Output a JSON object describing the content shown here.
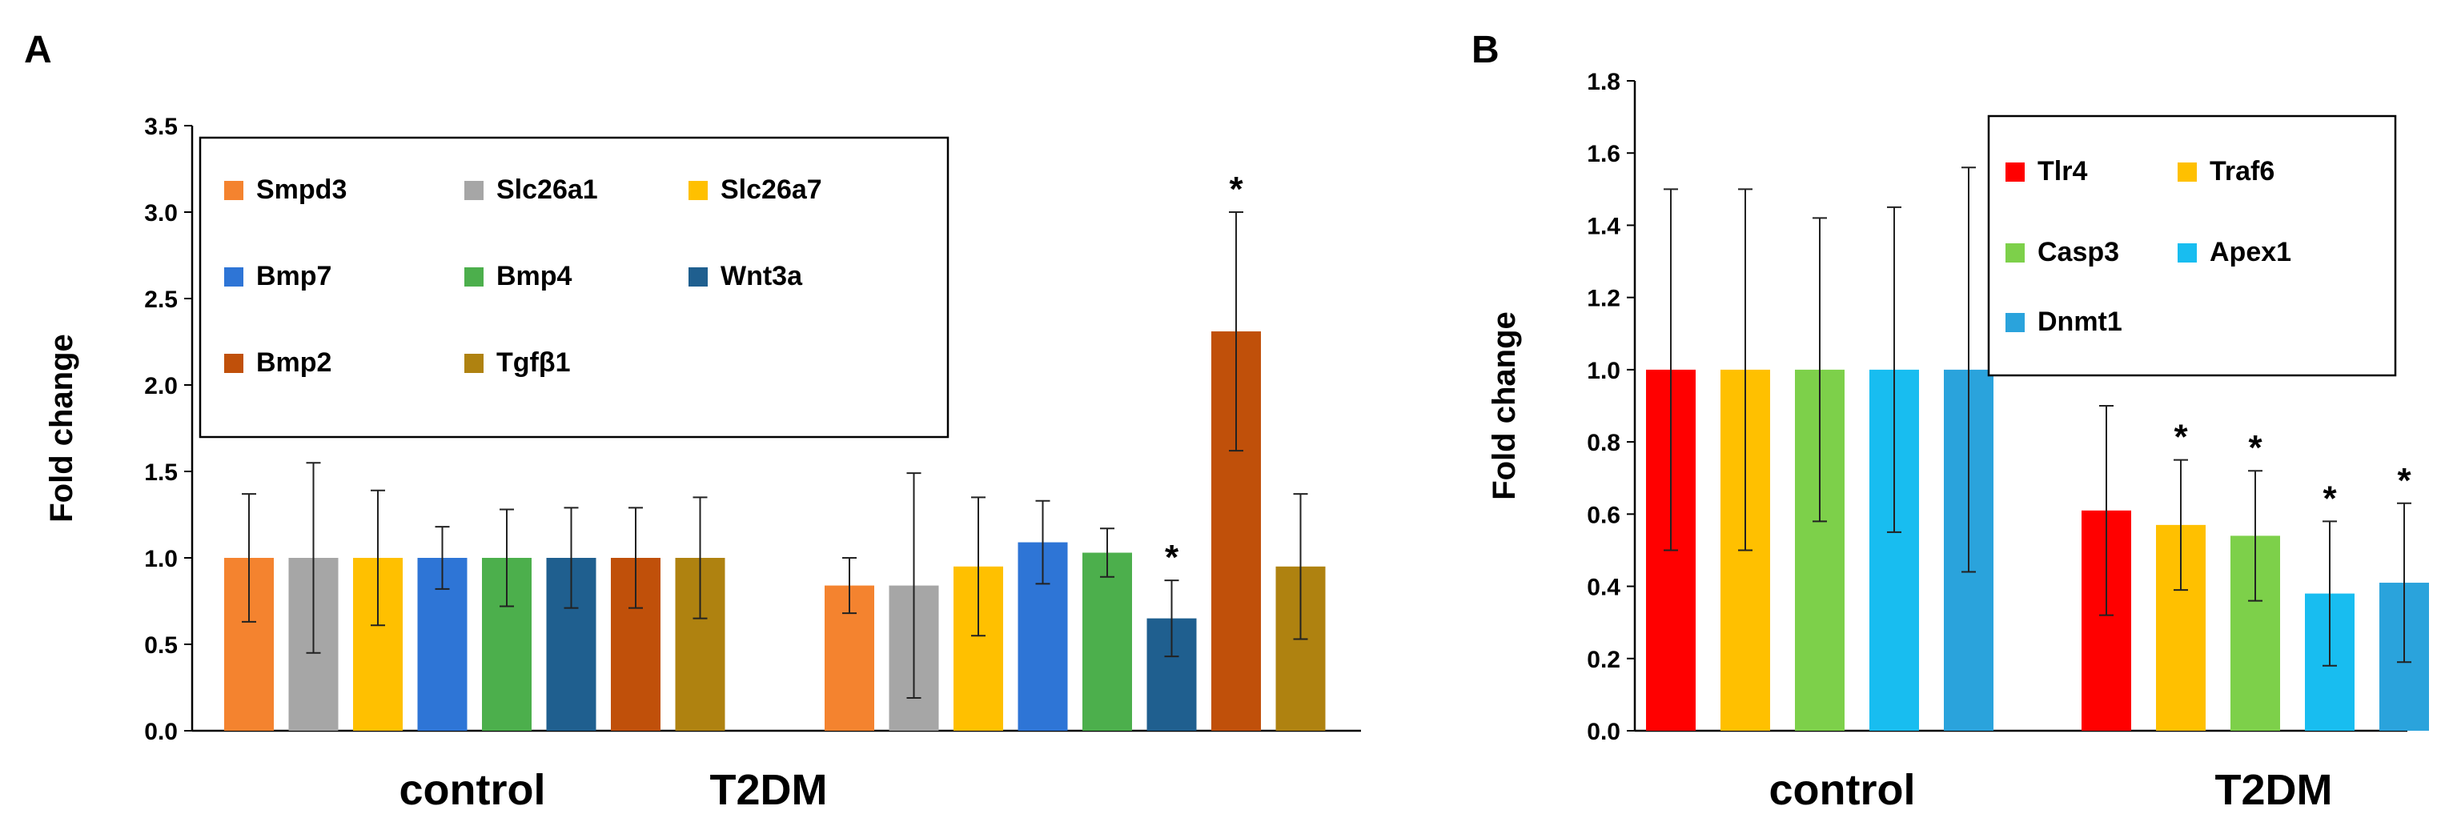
{
  "panels": [
    {
      "label": "A",
      "chart_data": {
        "type": "bar",
        "ylabel": "Fold change",
        "ylim": [
          0,
          3.5
        ],
        "yticks": [
          "0.0",
          "0.5",
          "1.0",
          "1.5",
          "2.0",
          "2.5",
          "3.0",
          "3.5"
        ],
        "categories": [
          "control",
          "T2DM"
        ],
        "series": [
          {
            "name": "Smpd3",
            "color": "#F4832F",
            "values": [
              1.0,
              0.84
            ],
            "errors": [
              0.37,
              0.16
            ],
            "sig": [
              false,
              false
            ]
          },
          {
            "name": "Slc26a1",
            "color": "#A6A6A6",
            "values": [
              1.0,
              0.84
            ],
            "errors": [
              0.55,
              0.65
            ],
            "sig": [
              false,
              false
            ]
          },
          {
            "name": "Slc26a7",
            "color": "#FFC000",
            "values": [
              1.0,
              0.95
            ],
            "errors": [
              0.39,
              0.4
            ],
            "sig": [
              false,
              false
            ]
          },
          {
            "name": "Bmp7",
            "color": "#2E75D6",
            "values": [
              1.0,
              1.09
            ],
            "errors": [
              0.18,
              0.24
            ],
            "sig": [
              false,
              false
            ]
          },
          {
            "name": "Bmp4",
            "color": "#4CAF4C",
            "values": [
              1.0,
              1.03
            ],
            "errors": [
              0.28,
              0.14
            ],
            "sig": [
              false,
              false
            ]
          },
          {
            "name": "Wnt3a",
            "color": "#1F5F8F",
            "values": [
              1.0,
              0.65
            ],
            "errors": [
              0.29,
              0.22
            ],
            "sig": [
              false,
              true
            ]
          },
          {
            "name": "Bmp2",
            "color": "#C0500A",
            "values": [
              1.0,
              2.31
            ],
            "errors": [
              0.29,
              0.69
            ],
            "sig": [
              false,
              true
            ]
          },
          {
            "name": "Tgfβ1",
            "color": "#AF8210",
            "values": [
              1.0,
              0.95
            ],
            "errors": [
              0.35,
              0.42
            ],
            "sig": [
              false,
              false
            ]
          }
        ],
        "significance_marker": "*",
        "legend": "top-left"
      }
    },
    {
      "label": "B",
      "chart_data": {
        "type": "bar",
        "ylabel": "Fold change",
        "ylim": [
          0,
          1.8
        ],
        "yticks": [
          "0.0",
          "0.2",
          "0.4",
          "0.6",
          "0.8",
          "1.0",
          "1.2",
          "1.4",
          "1.6",
          "1.8"
        ],
        "categories": [
          "control",
          "T2DM"
        ],
        "series": [
          {
            "name": "Tlr4",
            "color": "#FF0000",
            "values": [
              1.0,
              0.61
            ],
            "errors": [
              0.5,
              0.29
            ],
            "sig": [
              false,
              false
            ]
          },
          {
            "name": "Traf6",
            "color": "#FFC000",
            "values": [
              1.0,
              0.57
            ],
            "errors": [
              0.5,
              0.18
            ],
            "sig": [
              false,
              true
            ]
          },
          {
            "name": "Casp3",
            "color": "#7DD04A",
            "values": [
              1.0,
              0.54
            ],
            "errors": [
              0.42,
              0.18
            ],
            "sig": [
              false,
              true
            ]
          },
          {
            "name": "Apex1",
            "color": "#18BDF0",
            "values": [
              1.0,
              0.38
            ],
            "errors": [
              0.45,
              0.2
            ],
            "sig": [
              false,
              true
            ]
          },
          {
            "name": "Dnmt1",
            "color": "#2AA3DC",
            "values": [
              1.0,
              0.41
            ],
            "errors": [
              0.56,
              0.22
            ],
            "sig": [
              false,
              true
            ]
          }
        ],
        "significance_marker": "*",
        "legend": "top-right"
      }
    }
  ]
}
